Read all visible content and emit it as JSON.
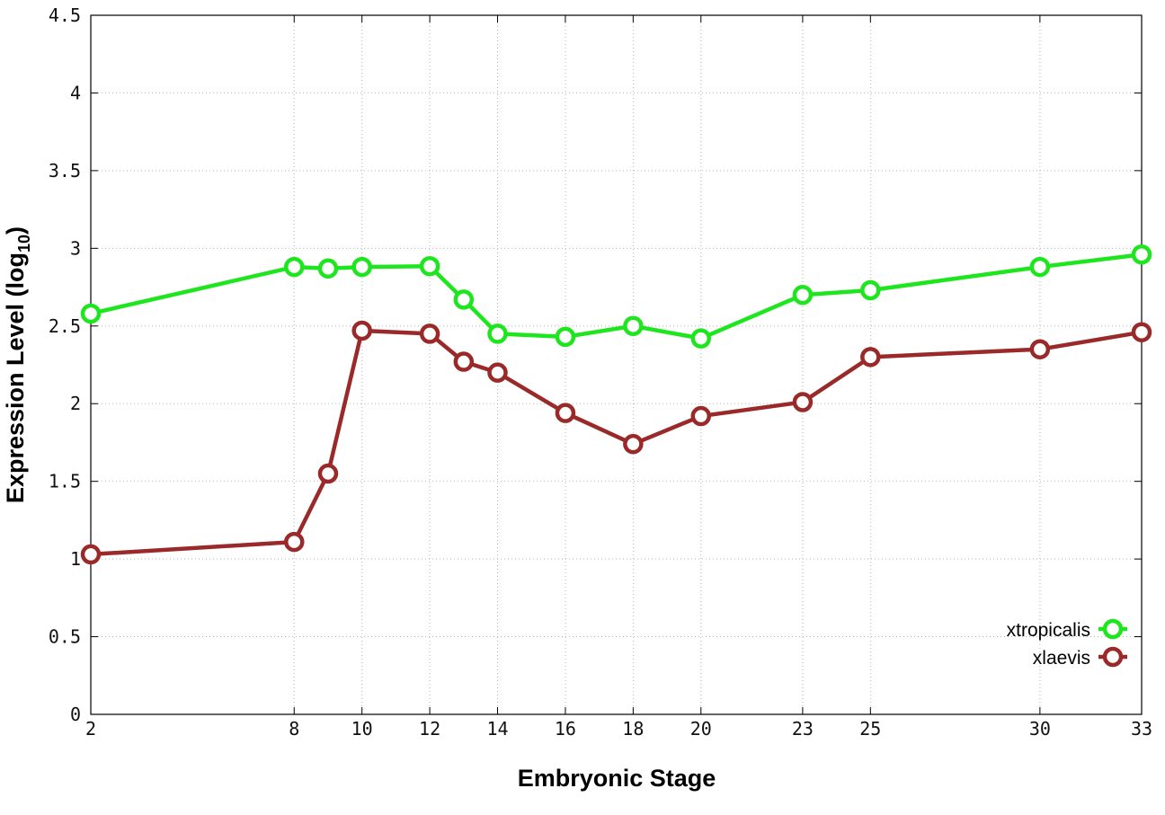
{
  "chart_data": {
    "type": "line",
    "xlabel": "Embryonic Stage",
    "ylabel_main": "Expression Level (log",
    "ylabel_sub": "10",
    "ylabel_close": ")",
    "xlim": [
      2,
      33
    ],
    "ylim": [
      0,
      4.5
    ],
    "x_ticks": [
      2,
      8,
      10,
      12,
      14,
      16,
      18,
      20,
      23,
      25,
      30,
      33
    ],
    "y_ticks": [
      0,
      0.5,
      1,
      1.5,
      2,
      2.5,
      3,
      3.5,
      4,
      4.5
    ],
    "y_tick_labels": [
      "0",
      "0.5",
      "1",
      "1.5",
      "2",
      "2.5",
      "3",
      "3.5",
      "4",
      "4.5"
    ],
    "grid": true,
    "legend_position": "bottom-right",
    "x": [
      2,
      8,
      9,
      10,
      12,
      13,
      14,
      16,
      18,
      20,
      23,
      25,
      30,
      33
    ],
    "series": [
      {
        "name": "xtropicalis",
        "color": "#1ee61e",
        "values": [
          2.58,
          2.88,
          2.87,
          2.88,
          2.885,
          2.67,
          2.45,
          2.43,
          2.5,
          2.42,
          2.7,
          2.73,
          2.88,
          2.96
        ]
      },
      {
        "name": "xlaevis",
        "color": "#9a2a2a",
        "values": [
          1.03,
          1.11,
          1.55,
          2.47,
          2.45,
          2.27,
          2.2,
          1.94,
          1.74,
          1.92,
          2.01,
          2.3,
          2.35,
          2.46
        ]
      }
    ]
  }
}
